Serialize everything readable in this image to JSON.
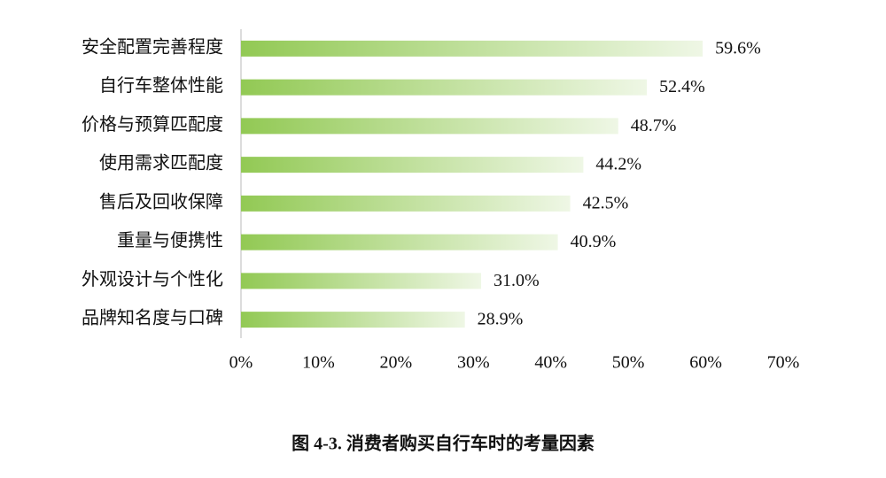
{
  "chart_data": {
    "type": "bar",
    "orientation": "horizontal",
    "title": "图 4-3. 消费者购买自行车时的考量因素",
    "categories": [
      "安全配置完善程度",
      "自行车整体性能",
      "价格与预算匹配度",
      "使用需求匹配度",
      "售后及回收保障",
      "重量与便携性",
      "外观设计与个性化",
      "品牌知名度与口碑"
    ],
    "values": [
      59.6,
      52.4,
      48.7,
      44.2,
      42.5,
      40.9,
      31.0,
      28.9
    ],
    "value_labels": [
      "59.6%",
      "52.4%",
      "48.7%",
      "44.2%",
      "42.5%",
      "40.9%",
      "31.0%",
      "28.9%"
    ],
    "color": "#92c954",
    "xlim": [
      0,
      70
    ],
    "xticks": [
      {
        "value": 0,
        "label": "0%"
      },
      {
        "value": 10,
        "label": "10%"
      },
      {
        "value": 20,
        "label": "20%"
      },
      {
        "value": 30,
        "label": "30%"
      },
      {
        "value": 40,
        "label": "40%"
      },
      {
        "value": 50,
        "label": "50%"
      },
      {
        "value": 60,
        "label": "60%"
      },
      {
        "value": 70,
        "label": "70%"
      }
    ],
    "grid": false
  }
}
